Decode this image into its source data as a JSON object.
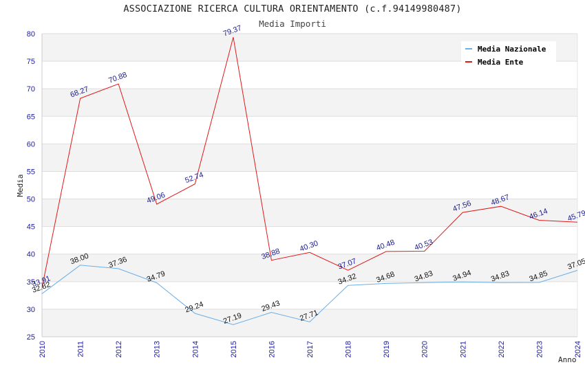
{
  "chart_data": {
    "type": "line",
    "title": "ASSOCIAZIONE RICERCA CULTURA ORIENTAMENTO (c.f.94149980487)",
    "subtitle": "Media Importi",
    "xlabel": "Anno",
    "ylabel": "Media",
    "ylim": [
      25,
      80
    ],
    "yticks": [
      25,
      30,
      35,
      40,
      45,
      50,
      55,
      60,
      65,
      70,
      75,
      80
    ],
    "grid": "horizontal alternating bands",
    "legend_position": "top-right",
    "categories": [
      "2010",
      "2011",
      "2012",
      "2013",
      "2014",
      "2015",
      "2016",
      "2017",
      "2018",
      "2019",
      "2020",
      "2021",
      "2022",
      "2023",
      "2024"
    ],
    "series": [
      {
        "name": "Media Nazionale",
        "color": "#6aaee8",
        "label_color": "#111111",
        "values": [
          32.82,
          38.0,
          37.36,
          34.79,
          29.24,
          27.19,
          29.43,
          27.71,
          34.32,
          34.68,
          34.83,
          34.94,
          34.83,
          34.85,
          37.05
        ],
        "labels": [
          "32.82",
          "38.00",
          "37.36",
          "34.79",
          "29.24",
          "27.19",
          "29.43",
          "27.71",
          "34.32",
          "34.68",
          "34.83",
          "34.94",
          "34.83",
          "34.85",
          "37.05"
        ]
      },
      {
        "name": "Media Ente",
        "color": "#e01818",
        "label_color": "#1a1a8c",
        "values": [
          33.91,
          68.27,
          70.88,
          49.06,
          52.74,
          79.37,
          38.88,
          40.3,
          37.07,
          40.48,
          40.53,
          47.56,
          48.67,
          46.14,
          45.79
        ],
        "labels": [
          "33.91",
          "68.27",
          "70.88",
          "49.06",
          "52.74",
          "79.37",
          "38.88",
          "40.30",
          "37.07",
          "40.48",
          "40.53",
          "47.56",
          "48.67",
          "46.14",
          "45.79"
        ]
      }
    ]
  }
}
